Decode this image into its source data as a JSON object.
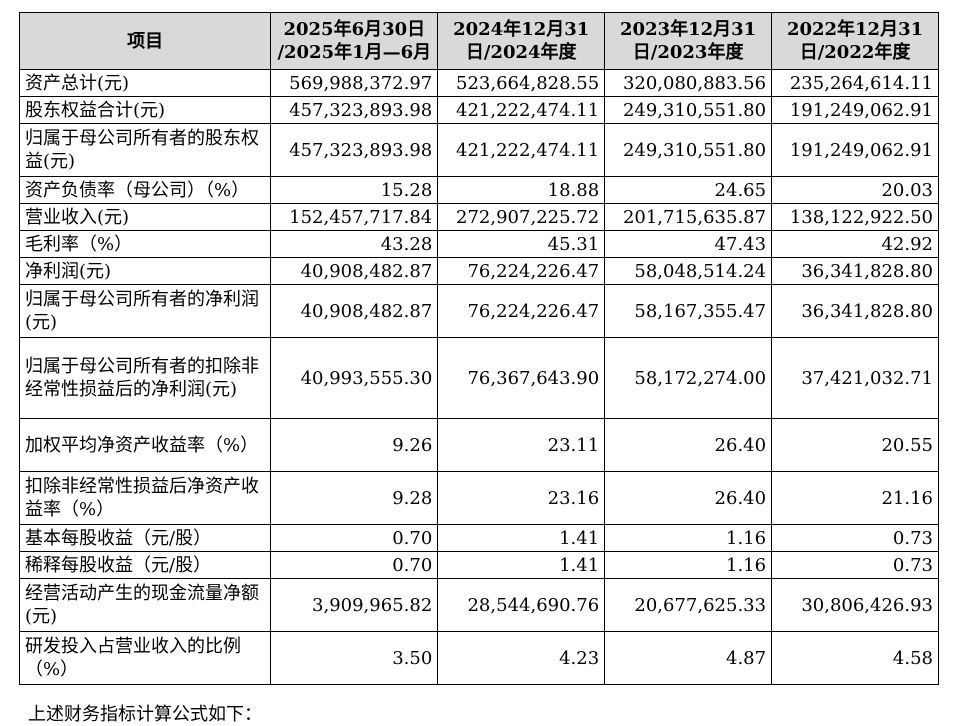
{
  "table": {
    "header": {
      "item": "项目",
      "periods": [
        {
          "line1": "2025年6月30日",
          "line2": "/2025年1月—6月"
        },
        {
          "line1": "2024年12月31",
          "line2": "日/2024年度"
        },
        {
          "line1": "2023年12月31",
          "line2": "日/2023年度"
        },
        {
          "line1": "2022年12月31",
          "line2": "日/2022年度"
        }
      ]
    },
    "rows": [
      {
        "label": "资产总计(元)",
        "values": [
          "569,988,372.97",
          "523,664,828.55",
          "320,080,883.56",
          "235,264,614.11"
        ]
      },
      {
        "label": "股东权益合计(元)",
        "values": [
          "457,323,893.98",
          "421,222,474.11",
          "249,310,551.80",
          "191,249,062.91"
        ]
      },
      {
        "label": "归属于母公司所有者的股东权益(元)",
        "values": [
          "457,323,893.98",
          "421,222,474.11",
          "249,310,551.80",
          "191,249,062.91"
        ]
      },
      {
        "label": "资产负债率（母公司）（%）",
        "values": [
          "15.28",
          "18.88",
          "24.65",
          "20.03"
        ]
      },
      {
        "label": "营业收入(元)",
        "values": [
          "152,457,717.84",
          "272,907,225.72",
          "201,715,635.87",
          "138,122,922.50"
        ]
      },
      {
        "label": "毛利率（%）",
        "values": [
          "43.28",
          "45.31",
          "47.43",
          "42.92"
        ]
      },
      {
        "label": "净利润(元)",
        "values": [
          "40,908,482.87",
          "76,224,226.47",
          "58,048,514.24",
          "36,341,828.80"
        ]
      },
      {
        "label": "归属于母公司所有者的净利润(元)",
        "values": [
          "40,908,482.87",
          "76,224,226.47",
          "58,167,355.47",
          "36,341,828.80"
        ]
      },
      {
        "label": "归属于母公司所有者的扣除非经常性损益后的净利润(元)",
        "values": [
          "40,993,555.30",
          "76,367,643.90",
          "58,172,274.00",
          "37,421,032.71"
        ]
      },
      {
        "label": "加权平均净资产收益率（%）",
        "values": [
          "9.26",
          "23.11",
          "26.40",
          "20.55"
        ]
      },
      {
        "label": "扣除非经常性损益后净资产收益率（%）",
        "values": [
          "9.28",
          "23.16",
          "26.40",
          "21.16"
        ]
      },
      {
        "label": "基本每股收益（元/股）",
        "values": [
          "0.70",
          "1.41",
          "1.16",
          "0.73"
        ]
      },
      {
        "label": "稀释每股收益（元/股）",
        "values": [
          "0.70",
          "1.41",
          "1.16",
          "0.73"
        ]
      },
      {
        "label": "经营活动产生的现金流量净额(元)",
        "values": [
          "3,909,965.82",
          "28,544,690.76",
          "20,677,625.33",
          "30,806,426.93"
        ]
      },
      {
        "label": "研发投入占营业收入的比例（%）",
        "values": [
          "3.50",
          "4.23",
          "4.87",
          "4.58"
        ]
      }
    ]
  },
  "footer_text": "上述财务指标计算公式如下："
}
